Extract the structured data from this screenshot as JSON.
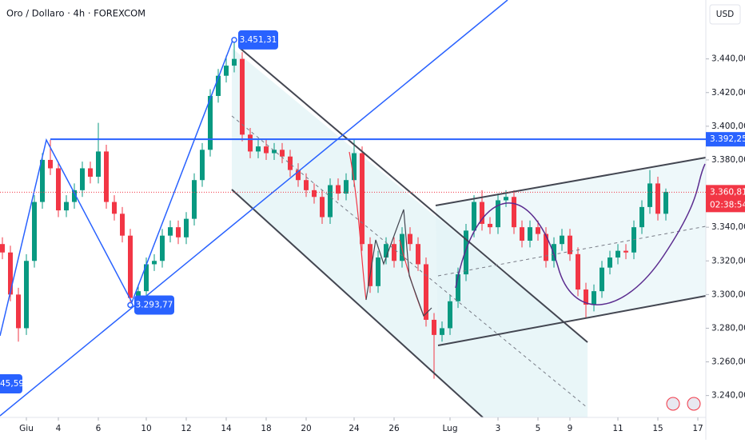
{
  "chart_data": {
    "type": "candlestick",
    "title": "Oro / Dollaro · 4h · FOREXCOM",
    "currency": "USD",
    "up_color": "#089981",
    "down_color": "#f23645",
    "open": [
      3330,
      3325,
      3300,
      3280,
      3320,
      3355,
      3380,
      3375,
      3350,
      3355,
      3362,
      3375,
      3370,
      3385,
      3355,
      3348,
      3335,
      3298,
      3302,
      3318,
      3320,
      3335,
      3340,
      3334,
      3345,
      3368,
      3386,
      3418,
      3430,
      3436,
      3440,
      3395,
      3385,
      3388,
      3384,
      3386,
      3382,
      3374,
      3368,
      3362,
      3358,
      3346,
      3365,
      3360,
      3368,
      3384,
      3330,
      3305,
      3322,
      3330,
      3320,
      3336,
      3330,
      3318,
      3285,
      3276,
      3280,
      3296,
      3312,
      3338,
      3355,
      3342,
      3340,
      3356,
      3358,
      3340,
      3332,
      3340,
      3336,
      3320,
      3330,
      3335,
      3324,
      3303,
      3294,
      3302,
      3316,
      3322,
      3326,
      3325,
      3340,
      3352,
      3366,
      3348
    ],
    "high": [
      3334,
      3329,
      3304,
      3324,
      3359,
      3384,
      3392,
      3379,
      3359,
      3366,
      3379,
      3379,
      3402,
      3389,
      3359,
      3352,
      3339,
      3306,
      3322,
      3324,
      3339,
      3344,
      3344,
      3349,
      3372,
      3390,
      3422,
      3434,
      3442,
      3451.31,
      3444,
      3399,
      3392,
      3392,
      3390,
      3390,
      3386,
      3378,
      3372,
      3366,
      3362,
      3369,
      3369,
      3372,
      3392,
      3388,
      3334,
      3326,
      3334,
      3334,
      3340,
      3340,
      3334,
      3322,
      3289,
      3284,
      3300,
      3316,
      3342,
      3359,
      3362,
      3346,
      3360,
      3362,
      3362,
      3344,
      3344,
      3344,
      3340,
      3334,
      3339,
      3339,
      3328,
      3307,
      3306,
      3320,
      3326,
      3330,
      3330,
      3344,
      3356,
      3374,
      3370,
      3363
    ],
    "low": [
      3321,
      3296,
      3272,
      3276,
      3316,
      3351,
      3371,
      3346,
      3346,
      3351,
      3358,
      3366,
      3366,
      3351,
      3344,
      3331,
      3293.77,
      3294,
      3298,
      3314,
      3316,
      3331,
      3330,
      3330,
      3341,
      3364,
      3382,
      3414,
      3426,
      3432,
      3391,
      3381,
      3381,
      3380,
      3380,
      3378,
      3370,
      3364,
      3358,
      3354,
      3342,
      3342,
      3356,
      3356,
      3364,
      3326,
      3301,
      3301,
      3318,
      3316,
      3316,
      3326,
      3314,
      3281,
      3250,
      3272,
      3276,
      3292,
      3308,
      3334,
      3338,
      3336,
      3336,
      3352,
      3336,
      3328,
      3328,
      3332,
      3316,
      3316,
      3326,
      3320,
      3299,
      3286,
      3290,
      3298,
      3312,
      3318,
      3321,
      3321,
      3336,
      3348,
      3344,
      3344
    ],
    "close": [
      3325,
      3300,
      3280,
      3320,
      3355,
      3380,
      3375,
      3350,
      3355,
      3362,
      3375,
      3370,
      3385,
      3355,
      3348,
      3335,
      3298,
      3302,
      3318,
      3320,
      3335,
      3340,
      3334,
      3345,
      3368,
      3386,
      3418,
      3430,
      3436,
      3440,
      3395,
      3385,
      3388,
      3384,
      3386,
      3382,
      3374,
      3368,
      3362,
      3358,
      3346,
      3365,
      3360,
      3368,
      3384,
      3330,
      3305,
      3322,
      3330,
      3320,
      3336,
      3330,
      3318,
      3285,
      3276,
      3280,
      3296,
      3312,
      3338,
      3355,
      3342,
      3340,
      3356,
      3358,
      3340,
      3332,
      3340,
      3336,
      3320,
      3330,
      3335,
      3324,
      3303,
      3294,
      3302,
      3316,
      3322,
      3326,
      3325,
      3340,
      3352,
      3366,
      3348,
      3361
    ],
    "xlim": [
      -0.3,
      88
    ],
    "ylim": [
      3227,
      3475
    ],
    "xticks": [
      {
        "value": 3,
        "label": "Giu"
      },
      {
        "value": 7,
        "label": "4"
      },
      {
        "value": 12,
        "label": "6"
      },
      {
        "value": 18,
        "label": "10"
      },
      {
        "value": 23,
        "label": "12"
      },
      {
        "value": 28,
        "label": "14"
      },
      {
        "value": 33,
        "label": "18"
      },
      {
        "value": 38,
        "label": "20"
      },
      {
        "value": 44,
        "label": "24"
      },
      {
        "value": 49,
        "label": "26"
      },
      {
        "value": 56,
        "label": "Lug"
      },
      {
        "value": 62,
        "label": "3"
      },
      {
        "value": 67,
        "label": "5"
      },
      {
        "value": 71,
        "label": "9"
      },
      {
        "value": 77,
        "label": "11"
      },
      {
        "value": 82,
        "label": "15"
      },
      {
        "value": 87,
        "label": "17"
      }
    ],
    "yticks": [
      {
        "value": 3240,
        "label": "3.240,00"
      },
      {
        "value": 3260,
        "label": "3.260,00"
      },
      {
        "value": 3280,
        "label": "3.280,00"
      },
      {
        "value": 3300,
        "label": "3.300,00"
      },
      {
        "value": 3320,
        "label": "3.320,00"
      },
      {
        "value": 3340,
        "label": "3.340,00"
      },
      {
        "value": 3380,
        "label": "3.380,00"
      },
      {
        "value": 3400,
        "label": "3.400,00"
      },
      {
        "value": 3420,
        "label": "3.420,00"
      },
      {
        "value": 3440,
        "label": "3.440,00"
      }
    ],
    "horizontal_level": {
      "value": 3392.25,
      "label": "3.392,25"
    },
    "current_price": {
      "value": 3360.81,
      "label": "3.360,81"
    },
    "countdown": "02:38:54",
    "annotations": [
      {
        "index": 29,
        "value": 3451.31,
        "label": "3.451,31"
      },
      {
        "index": 16,
        "value": 3293.77,
        "label": "3.293,77"
      },
      {
        "label": "45,59"
      }
    ]
  }
}
